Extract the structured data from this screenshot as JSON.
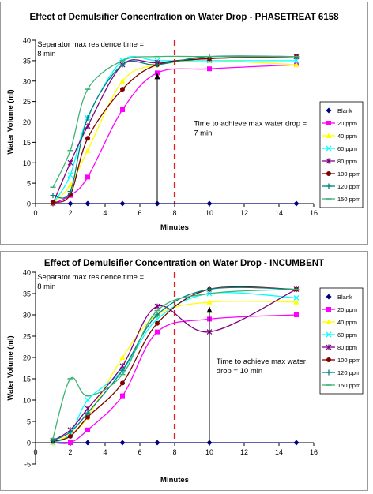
{
  "chart_data": [
    {
      "type": "line",
      "title": "Effect of Demulsifier Concentration on Water Drop - PHASETREAT 6158",
      "xlabel": "Minutes",
      "ylabel": "Water Volume (ml)",
      "xlim": [
        0,
        16
      ],
      "ylim": [
        0,
        40
      ],
      "xticks": [
        "0",
        "2",
        "4",
        "6",
        "8",
        "10",
        "12",
        "14",
        "16"
      ],
      "yticks": [
        "0",
        "5",
        "10",
        "15",
        "20",
        "25",
        "30",
        "35",
        "40"
      ],
      "grid": false,
      "legend_position": "right",
      "series": [
        {
          "name": "Blank",
          "color": "#00007f",
          "marker": "diamond",
          "x": [
            1,
            2,
            3,
            5,
            7,
            10,
            15
          ],
          "y": [
            0,
            0,
            0,
            0,
            0,
            0,
            0
          ]
        },
        {
          "name": "20 ppm",
          "color": "#ff00ff",
          "marker": "square",
          "x": [
            1,
            2,
            3,
            5,
            7,
            10,
            15
          ],
          "y": [
            0,
            2,
            6.5,
            23,
            32,
            33,
            34
          ]
        },
        {
          "name": "40 ppm",
          "color": "#ffff00",
          "marker": "triangle",
          "x": [
            1,
            2,
            3,
            5,
            7,
            10,
            15
          ],
          "y": [
            0,
            4.5,
            13,
            30,
            34,
            35,
            34
          ]
        },
        {
          "name": "60 ppm",
          "color": "#00ffff",
          "marker": "x",
          "x": [
            1,
            2,
            3,
            5,
            7,
            10,
            15
          ],
          "y": [
            0,
            7,
            21,
            35,
            35,
            35,
            35
          ]
        },
        {
          "name": "80 ppm",
          "color": "#800080",
          "marker": "star",
          "x": [
            1,
            2,
            3,
            5,
            7,
            10,
            15
          ],
          "y": [
            0,
            10,
            19,
            34,
            34.5,
            35.5,
            36
          ]
        },
        {
          "name": "100 ppm",
          "color": "#800000",
          "marker": "circle",
          "x": [
            1,
            2,
            3,
            5,
            7,
            10,
            15
          ],
          "y": [
            0.3,
            2.2,
            16,
            28,
            34,
            35.5,
            36
          ]
        },
        {
          "name": "120 ppm",
          "color": "#008080",
          "marker": "plus",
          "x": [
            1,
            2,
            3,
            5,
            7,
            10,
            15
          ],
          "y": [
            2,
            3,
            21,
            34,
            34,
            36,
            36
          ]
        },
        {
          "name": "150 ppm",
          "color": "#3cb371",
          "marker": "dash",
          "x": [
            1,
            2,
            3,
            5,
            7,
            10,
            15
          ],
          "y": [
            4,
            13,
            28,
            35,
            36,
            36,
            36
          ]
        }
      ],
      "annotations": [
        {
          "text": [
            "Separator max residence time =",
            "8 min"
          ],
          "x": 0.1,
          "y": 38.5
        },
        {
          "text": [
            "Time to achieve max water drop =",
            "7 min"
          ],
          "x": 9.1,
          "y": 19
        }
      ],
      "reference_line": {
        "x": 8,
        "color": "#e02020",
        "style": "dashed"
      },
      "arrow": {
        "x": 7,
        "y_from": 0,
        "y_to": 32
      }
    },
    {
      "type": "line",
      "title": "Effect of Demulsifier Concentration on Water Drop - INCUMBENT",
      "xlabel": "Minutes",
      "ylabel": "Water Volume (ml)",
      "xlim": [
        0,
        16
      ],
      "ylim": [
        -5,
        40
      ],
      "xticks": [
        "0",
        "2",
        "4",
        "6",
        "8",
        "10",
        "12",
        "14",
        "16"
      ],
      "yticks": [
        "-5",
        "0",
        "5",
        "10",
        "15",
        "20",
        "25",
        "30",
        "35",
        "40"
      ],
      "grid": false,
      "legend_position": "right",
      "series": [
        {
          "name": "Blank",
          "color": "#00007f",
          "marker": "diamond",
          "x": [
            1,
            2,
            3,
            5,
            7,
            10,
            15
          ],
          "y": [
            0,
            0,
            0,
            0,
            0,
            0,
            0
          ]
        },
        {
          "name": "20 ppm",
          "color": "#ff00ff",
          "marker": "square",
          "x": [
            1,
            2,
            3,
            5,
            7,
            10,
            15
          ],
          "y": [
            0,
            0,
            3,
            11,
            26,
            29,
            30
          ]
        },
        {
          "name": "40 ppm",
          "color": "#ffff00",
          "marker": "triangle",
          "x": [
            1,
            2,
            3,
            5,
            7,
            10,
            15
          ],
          "y": [
            0,
            2,
            6,
            20,
            30,
            33,
            33
          ]
        },
        {
          "name": "60 ppm",
          "color": "#00ffff",
          "marker": "x",
          "x": [
            1,
            2,
            3,
            5,
            7,
            10,
            15
          ],
          "y": [
            0,
            2,
            10,
            17,
            29,
            35,
            34
          ]
        },
        {
          "name": "80 ppm",
          "color": "#800080",
          "marker": "star",
          "x": [
            1,
            2,
            3,
            5,
            7,
            10,
            15
          ],
          "y": [
            0.5,
            3,
            8,
            18,
            32,
            26,
            36
          ]
        },
        {
          "name": "100 ppm",
          "color": "#800000",
          "marker": "circle",
          "x": [
            1,
            2,
            3,
            5,
            7,
            10,
            15
          ],
          "y": [
            0.3,
            1.5,
            6,
            14,
            28,
            36,
            36
          ]
        },
        {
          "name": "120 ppm",
          "color": "#008080",
          "marker": "plus",
          "x": [
            1,
            2,
            3,
            5,
            7,
            10,
            15
          ],
          "y": [
            0.5,
            2.5,
            7,
            17,
            30,
            36,
            36
          ]
        },
        {
          "name": "150 ppm",
          "color": "#3cb371",
          "marker": "dash",
          "x": [
            1,
            2,
            3,
            5,
            7,
            10,
            15
          ],
          "y": [
            1,
            15,
            11,
            16,
            31,
            35,
            36
          ]
        }
      ],
      "annotations": [
        {
          "text": [
            "Separator max residence time =",
            "8 min"
          ],
          "x": 0.1,
          "y": 38.3
        },
        {
          "text": [
            "Time to achieve max water",
            "drop = 10 min"
          ],
          "x": 10.4,
          "y": 18.5
        }
      ],
      "reference_line": {
        "x": 8,
        "color": "#e02020",
        "style": "dashed"
      },
      "arrow": {
        "x": 10,
        "y_from": 0,
        "y_to": 32
      }
    }
  ]
}
